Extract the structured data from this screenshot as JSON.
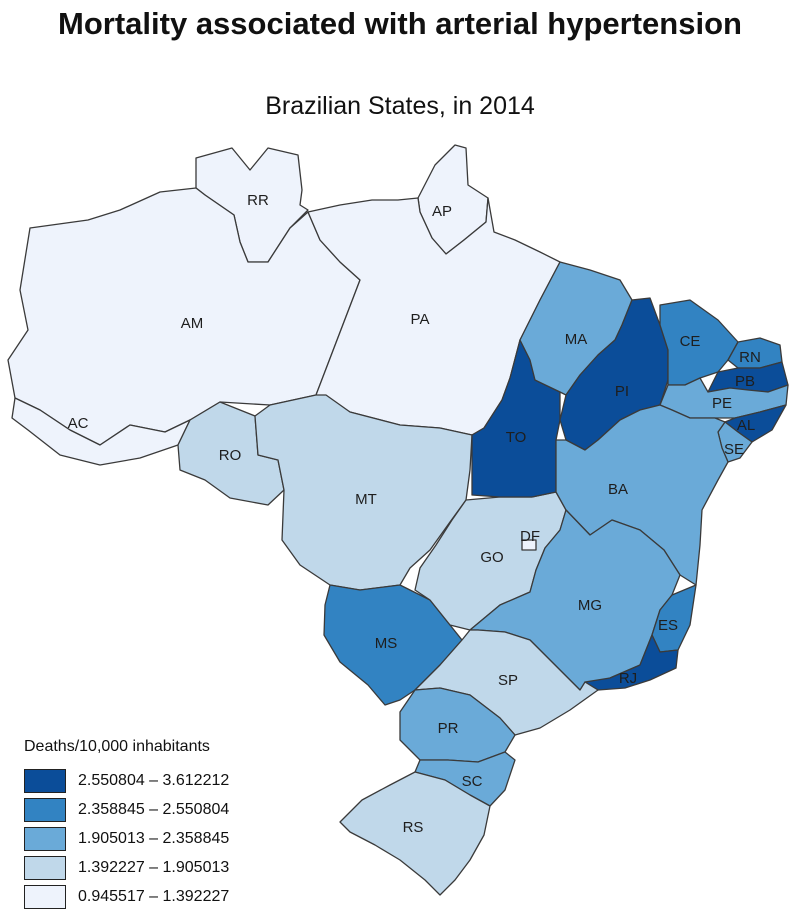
{
  "title": "Mortality associated with arterial hypertension",
  "subtitle": "Brazilian States, in 2014",
  "legend": {
    "title": "Deaths/10,000 inhabitants",
    "classes": [
      {
        "range": "2.550804 – 3.612212",
        "color": "#0b4d99"
      },
      {
        "range": "2.358845 – 2.550804",
        "color": "#3283c2"
      },
      {
        "range": "1.905013 – 2.358845",
        "color": "#6aaad8"
      },
      {
        "range": "1.392227 – 1.905013",
        "color": "#c0d8ea"
      },
      {
        "range": "0.945517 – 1.392227",
        "color": "#eef3fc"
      }
    ]
  },
  "states": {
    "RR": {
      "label": "RR",
      "class": 4
    },
    "AP": {
      "label": "AP",
      "class": 4
    },
    "AM": {
      "label": "AM",
      "class": 4
    },
    "PA": {
      "label": "PA",
      "class": 4
    },
    "AC": {
      "label": "AC",
      "class": 4
    },
    "RO": {
      "label": "RO",
      "class": 3
    },
    "MT": {
      "label": "MT",
      "class": 3
    },
    "MA": {
      "label": "MA",
      "class": 2
    },
    "PI": {
      "label": "PI",
      "class": 0
    },
    "CE": {
      "label": "CE",
      "class": 1
    },
    "RN": {
      "label": "RN",
      "class": 1
    },
    "PB": {
      "label": "PB",
      "class": 0
    },
    "PE": {
      "label": "PE",
      "class": 2
    },
    "AL": {
      "label": "AL",
      "class": 0
    },
    "SE": {
      "label": "SE",
      "class": 2
    },
    "TO": {
      "label": "TO",
      "class": 0
    },
    "BA": {
      "label": "BA",
      "class": 2
    },
    "DF": {
      "label": "DF",
      "class": 4
    },
    "GO": {
      "label": "GO",
      "class": 3
    },
    "MG": {
      "label": "MG",
      "class": 2
    },
    "ES": {
      "label": "ES",
      "class": 1
    },
    "RJ": {
      "label": "RJ",
      "class": 0
    },
    "SP": {
      "label": "SP",
      "class": 3
    },
    "MS": {
      "label": "MS",
      "class": 1
    },
    "PR": {
      "label": "PR",
      "class": 2
    },
    "SC": {
      "label": "SC",
      "class": 2
    },
    "RS": {
      "label": "RS",
      "class": 3
    }
  }
}
